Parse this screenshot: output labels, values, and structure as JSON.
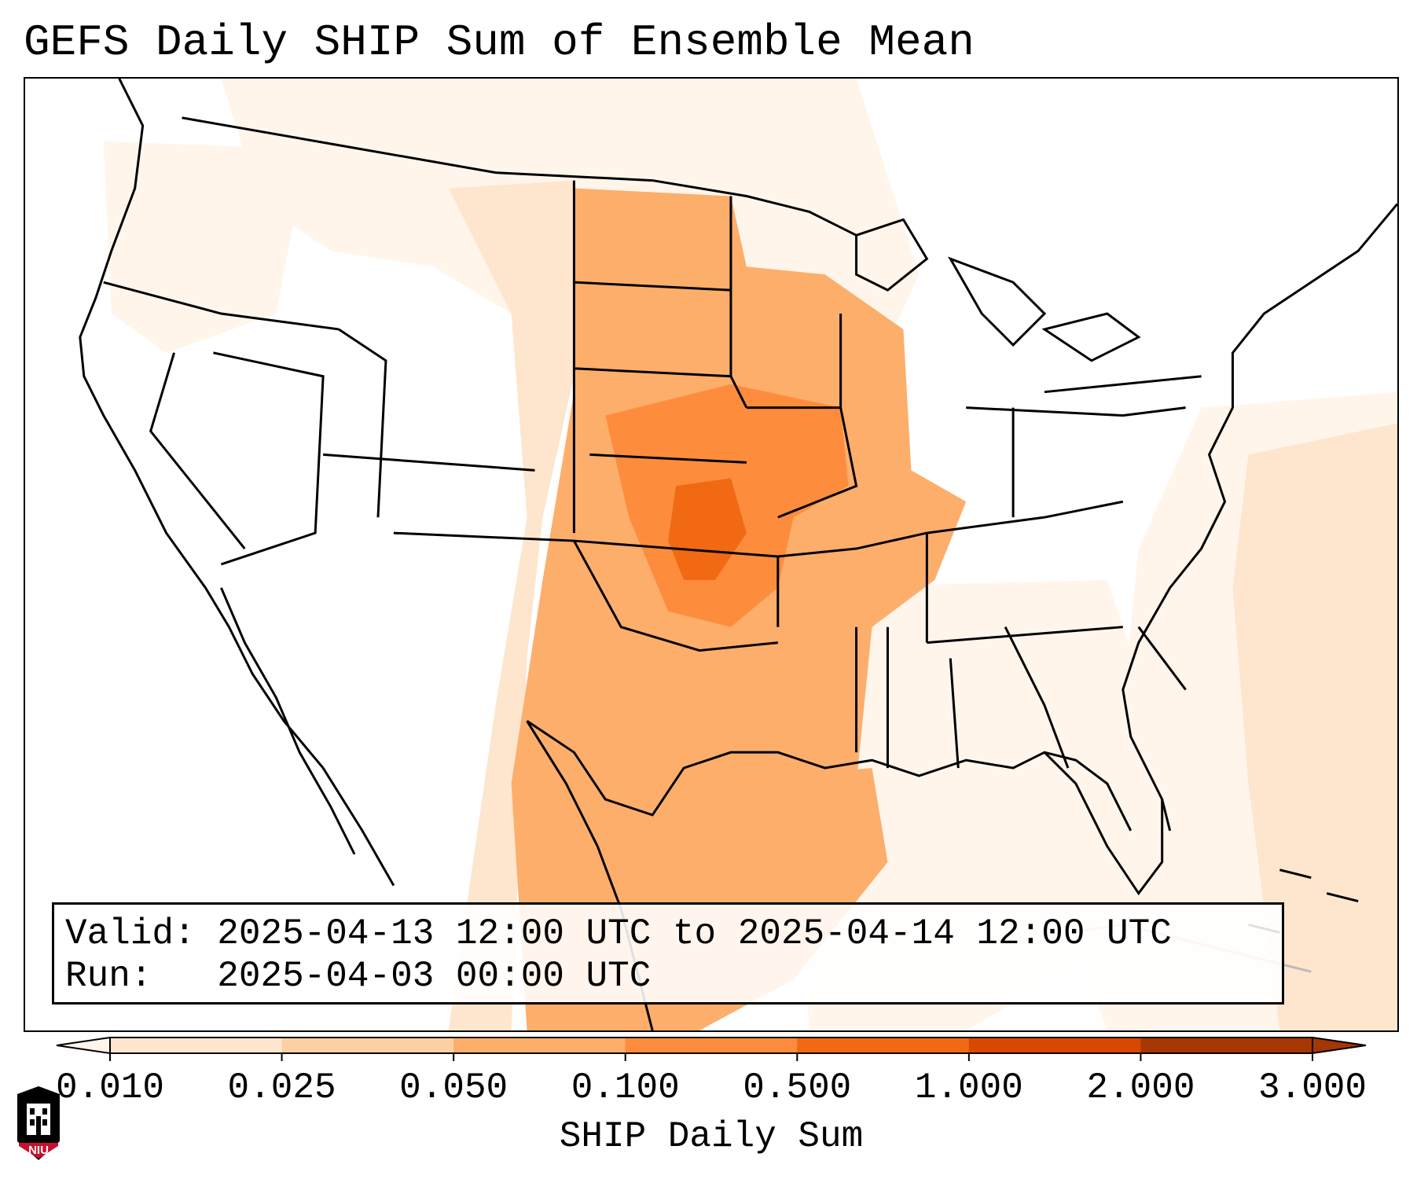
{
  "title": "GEFS Daily SHIP Sum of Ensemble Mean",
  "info": {
    "valid_label": "Valid:",
    "valid_value": "2025-04-13 12:00 UTC to 2025-04-14 12:00 UTC",
    "run_label": "Run:",
    "run_value": "2025-04-03 00:00 UTC"
  },
  "colorbar": {
    "label": "SHIP Daily Sum",
    "ticks": [
      "0.010",
      "0.025",
      "0.050",
      "0.100",
      "0.500",
      "1.000",
      "2.000",
      "3.000"
    ],
    "colors": [
      "#fff5eb",
      "#fee6ce",
      "#fdd0a2",
      "#fdae6b",
      "#fd8d3c",
      "#f16913",
      "#d94801",
      "#a63603"
    ],
    "extend": "both"
  },
  "logo": {
    "text": "NIU",
    "color": "#c8102e"
  }
}
